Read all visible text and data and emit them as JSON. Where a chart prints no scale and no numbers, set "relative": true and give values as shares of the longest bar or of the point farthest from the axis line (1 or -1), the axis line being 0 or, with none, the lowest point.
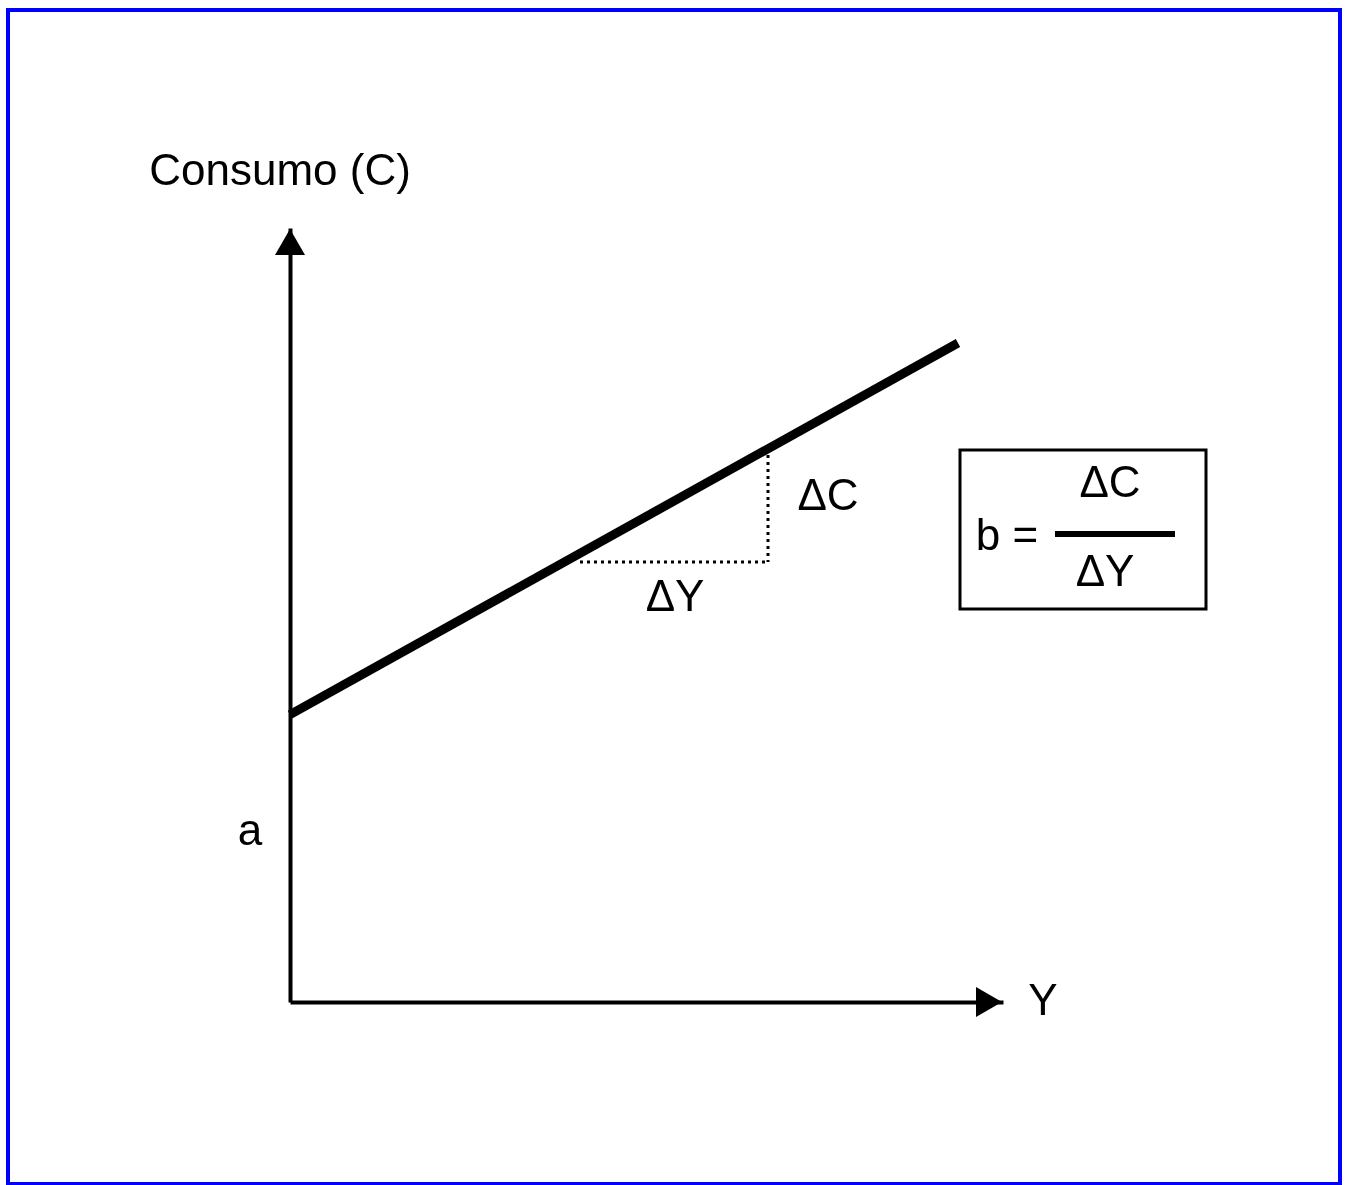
{
  "chart_data": {
    "type": "line",
    "relative": true,
    "xlabel": "Y",
    "ylabel": "Consumo (C)",
    "categories": [
      null,
      null
    ],
    "series": [
      {
        "color": "#000000",
        "values": [
          0.436,
          1
        ]
      }
    ],
    "annotations": [
      "ΔC",
      "ΔY",
      "a",
      "b =",
      "ΔC",
      "ΔY"
    ],
    "grid": false,
    "legend": false,
    "tick_labels": false
  }
}
